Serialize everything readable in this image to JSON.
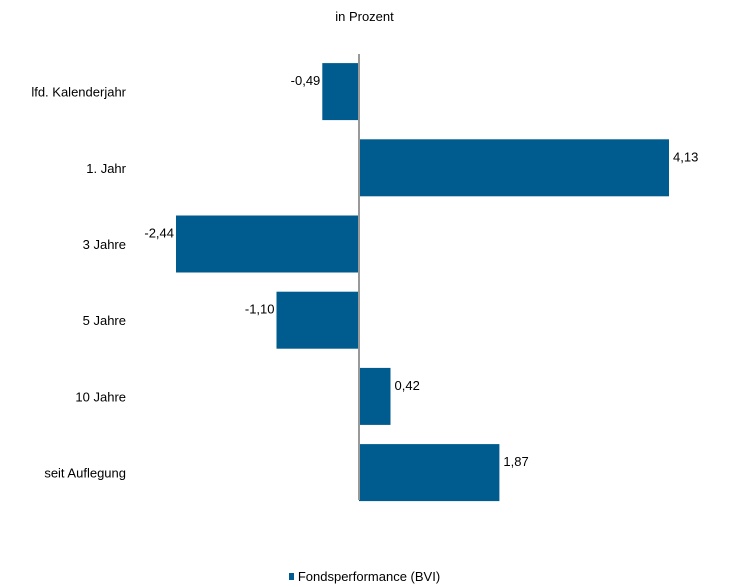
{
  "chart_data": {
    "type": "bar",
    "orientation": "horizontal",
    "subtitle": "in Prozent",
    "categories": [
      "lfd. Kalenderjahr",
      "1. Jahr",
      "3 Jahre",
      "5 Jahre",
      "10 Jahre",
      "seit Auflegung"
    ],
    "series": [
      {
        "name": "Fondsperformance (BVI)",
        "values": [
          -0.49,
          4.13,
          -2.44,
          -1.1,
          0.42,
          1.87
        ],
        "labels": [
          "-0,49",
          "4,13",
          "-2,44",
          "-1,10",
          "0,42",
          "1,87"
        ]
      }
    ],
    "xlim": [
      -2.44,
      4.13
    ],
    "grid": false,
    "legend_position": "bottom",
    "colors": {
      "bar": "#005b8e",
      "axis": "#999999"
    }
  }
}
